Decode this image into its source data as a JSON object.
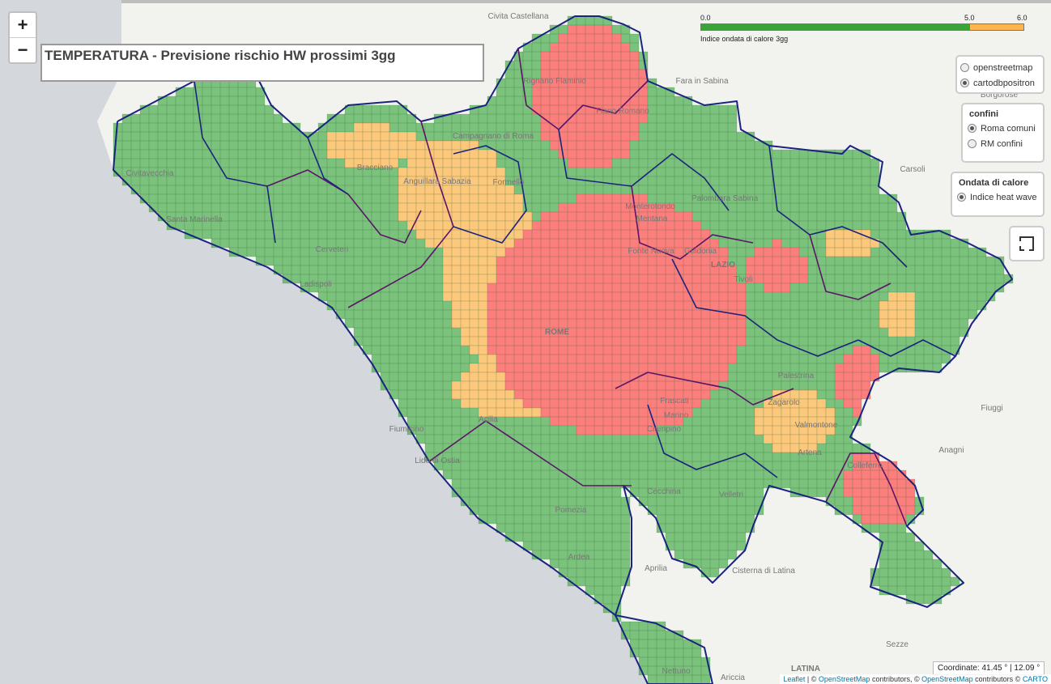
{
  "map": {
    "title": "TEMPERATURA - Previsione rischio HW prossimi 3gg",
    "zoom_in": "+",
    "zoom_out": "−",
    "colors": {
      "low": "#4caf50",
      "mid": "#ffb74d",
      "high": "#ff5252",
      "border": "#1a237e",
      "sea": "#d4d7dc",
      "land": "#f2f2ef"
    },
    "legend": {
      "ticks": [
        "0.0",
        "5.0",
        "6.0"
      ],
      "label": "Indice ondata di calore 3gg",
      "segments": [
        {
          "from": 0,
          "to": 5,
          "color": "#3aa33a"
        },
        {
          "from": 5,
          "to": 6,
          "color": "#ffb74d"
        }
      ]
    },
    "basemaps": {
      "options": [
        "openstreetmap",
        "cartodbpositron"
      ],
      "selected": "cartodbpositron"
    },
    "confini": {
      "title": "confini",
      "options": [
        "Roma comuni",
        "RM confini"
      ],
      "selected": "Roma comuni"
    },
    "ondata": {
      "title": "Ondata di calore",
      "options": [
        "Indice heat wave"
      ],
      "selected": "Indice heat wave"
    },
    "coordinates": "Coordinate: 41.45 ° | 12.09 °",
    "attribution": {
      "leaflet": "Leaflet",
      "sep1": " | © ",
      "osm": "OpenStreetMap",
      "mid": " contributors, © ",
      "osm2": "OpenStreetMap",
      "mid2": " contributors © ",
      "carto": "CARTO"
    },
    "places": [
      "Civita Castellana",
      "Fara in Sabina",
      "Borgorose",
      "Civitavecchia",
      "Santa Marinella",
      "Bracciano",
      "Anguillara Sabazia",
      "Cerveteri",
      "Ladispoli",
      "Fiumicino",
      "Lido di Ostia",
      "Acilia",
      "ROME",
      "Pomezia",
      "Ardea",
      "Aprilia",
      "Velletri",
      "Cisterna di Latina",
      "LATINA",
      "Sezze",
      "Fiuggi",
      "Anagni",
      "Palestrina",
      "Tivoli",
      "Guidonia",
      "LAZIO",
      "Carsoli",
      "Colleferro",
      "Valmontone",
      "Artena",
      "Frascati",
      "Marino",
      "Ciampino",
      "Fonte Nuova",
      "Mentana",
      "Monterotondo",
      "Palombara Sabina",
      "Campagnano di Roma",
      "Formello",
      "Rignano Flaminio",
      "Fiano Romano",
      "Ariccia",
      "Nettuno",
      "Cecchina",
      "Zagarolo"
    ]
  }
}
